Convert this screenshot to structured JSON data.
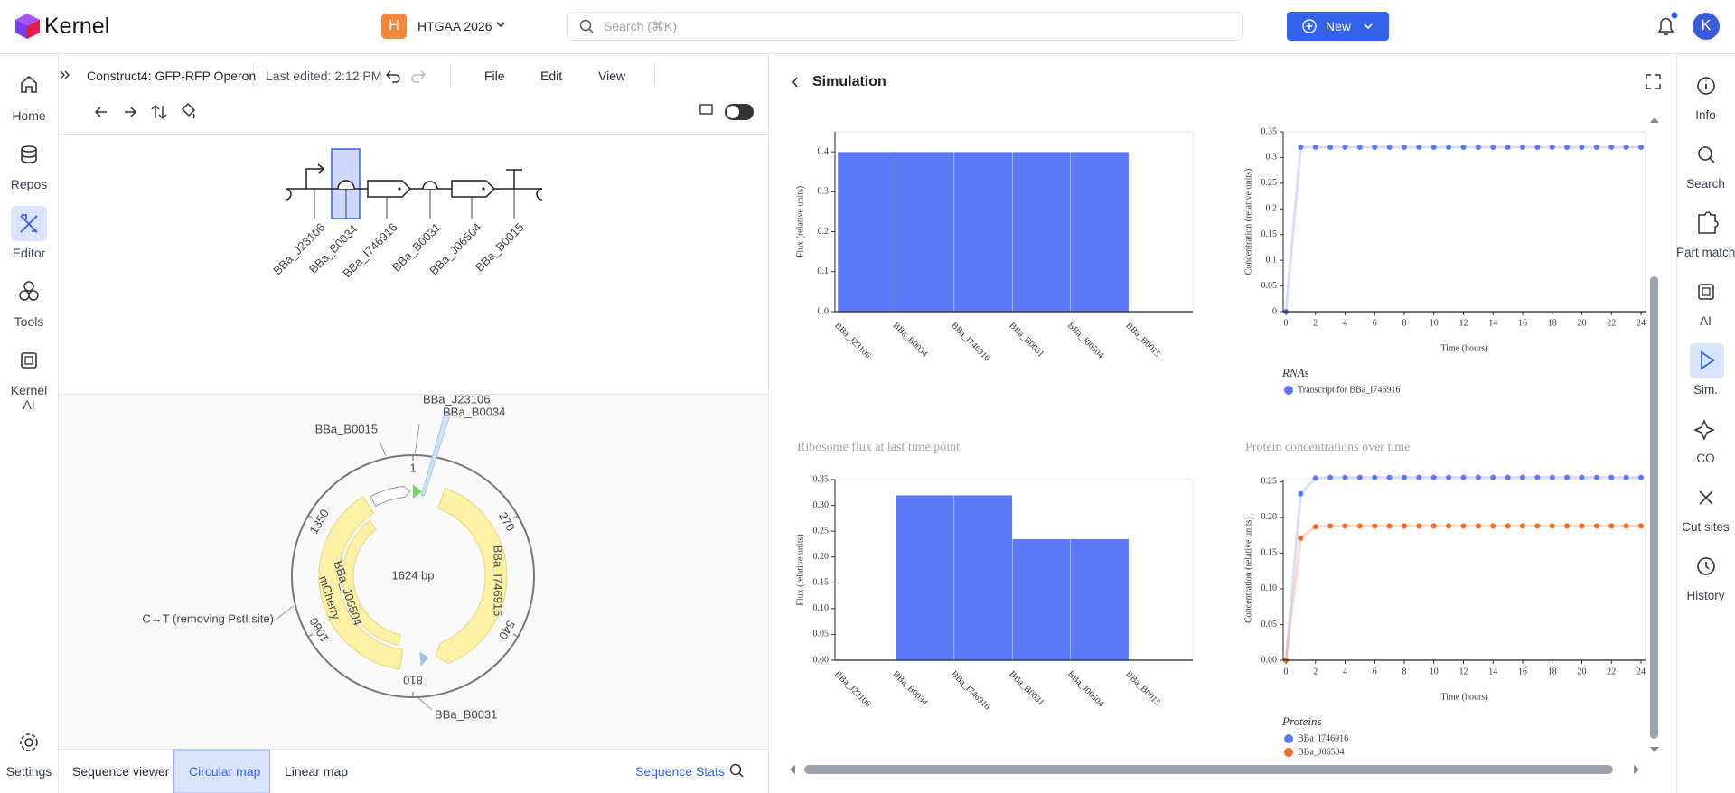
{
  "header": {
    "app": "Kernel",
    "workspace_badge": "H",
    "workspace": "HTGAA 2026",
    "search_placeholder": "Search (⌘K)",
    "new_button": "New",
    "avatar": "K"
  },
  "left_nav": [
    "Home",
    "Repos",
    "Editor",
    "Tools",
    "Kernel AI",
    "Settings"
  ],
  "editor": {
    "document": "Construct4: GFP-RFP Operon",
    "last_edited": "Last edited: 2:12 PM",
    "menu": [
      "File",
      "Edit",
      "View"
    ],
    "parts": [
      "BBa_J23106",
      "BBa_B0034",
      "BBa_I746916",
      "BBa_B0031",
      "BBa_J06504",
      "BBa_B0015"
    ],
    "circular_map": {
      "length": "1624 bp",
      "ticks": [
        "1",
        "270",
        "540",
        "810",
        "1080",
        "1350"
      ],
      "features": [
        "BBa_I746916",
        "BBa_J06504",
        "mCherry"
      ],
      "annotations": [
        "BBa_J23106",
        "BBa_B0034",
        "BBa_B0015",
        "C→T (removing PstI site)",
        "BBa_B0031"
      ]
    },
    "tabs": [
      "Sequence viewer",
      "Circular map",
      "Linear map"
    ],
    "sequence_stats": "Sequence Stats"
  },
  "simulation_panel": {
    "title": "Simulation"
  },
  "right_nav": [
    "Info",
    "Search",
    "Part match",
    "AI",
    "Sim.",
    "CO",
    "Cut sites",
    "History"
  ],
  "chart_data": [
    {
      "type": "bar",
      "ylabel": "Flux (relative units)",
      "categories": [
        "BBa_J23106",
        "BBa_B0034",
        "BBa_I746916",
        "BBa_B0031",
        "BBa_J06504",
        "BBa_B0015"
      ],
      "values": [
        0.4,
        0.4,
        0.4,
        0.4,
        0.4,
        0
      ],
      "color": "#5b7bf6",
      "ylim": [
        0,
        0.45
      ],
      "yticks": [
        {
          "value": 0,
          "label": "0.0"
        },
        0.1,
        0.2,
        0.3,
        0.4
      ],
      "grid": false
    },
    {
      "type": "line",
      "xlabel": "Time (hours)",
      "ylabel": "Concentration (relative units)",
      "x": [
        0,
        1,
        2,
        3,
        4,
        5,
        6,
        7,
        8,
        9,
        10,
        11,
        12,
        13,
        14,
        15,
        16,
        17,
        18,
        19,
        20,
        21,
        22,
        23,
        24
      ],
      "series": [
        {
          "name": "Transcript for BBa_I746916",
          "color": "#5b7bf6",
          "values": [
            0,
            0.32,
            0.32,
            0.32,
            0.32,
            0.32,
            0.32,
            0.32,
            0.32,
            0.32,
            0.32,
            0.32,
            0.32,
            0.32,
            0.32,
            0.32,
            0.32,
            0.32,
            0.32,
            0.32,
            0.32,
            0.32,
            0.32,
            0.32,
            0.32
          ]
        }
      ],
      "legend_title": "RNAs",
      "xlim": [
        0,
        24
      ],
      "xticks": [
        0,
        2,
        4,
        6,
        8,
        10,
        12,
        14,
        16,
        18,
        20,
        22,
        24
      ],
      "ylim": [
        0,
        0.35
      ],
      "yticks": [
        0,
        0.05,
        0.1,
        0.15,
        0.2,
        0.25,
        0.3,
        0.35
      ],
      "grid": false
    },
    {
      "type": "bar",
      "title": "Ribosome flux at last time point",
      "ylabel": "Flux (relative units)",
      "categories": [
        "BBa_J23106",
        "BBa_B0034",
        "BBa_I746916",
        "BBa_B0031",
        "BBa_J06504",
        "BBa_B0015"
      ],
      "values": [
        0,
        0.32,
        0.32,
        0.235,
        0.235,
        0
      ],
      "color": "#5b7bf6",
      "ylim": [
        0,
        0.35
      ],
      "yticks": [
        {
          "value": 0,
          "label": "0.00"
        },
        {
          "value": 0.05,
          "label": "0.05"
        },
        {
          "value": 0.1,
          "label": "0.10"
        },
        {
          "value": 0.15,
          "label": "0.15"
        },
        {
          "value": 0.2,
          "label": "0.20"
        },
        {
          "value": 0.25,
          "label": "0.25"
        },
        {
          "value": 0.3,
          "label": "0.30"
        },
        {
          "value": 0.35,
          "label": "0.35"
        }
      ],
      "grid": false
    },
    {
      "type": "line",
      "title": "Protein concentrations over time",
      "xlabel": "Time (hours)",
      "ylabel": "Concentration (relative units)",
      "x": [
        0,
        1,
        2,
        3,
        4,
        5,
        6,
        7,
        8,
        9,
        10,
        11,
        12,
        13,
        14,
        15,
        16,
        17,
        18,
        19,
        20,
        21,
        22,
        23,
        24
      ],
      "series": [
        {
          "name": "BBa_I746916",
          "color": "#5b7bf6",
          "values": [
            0,
            0.233,
            0.255,
            0.256,
            0.256,
            0.256,
            0.256,
            0.256,
            0.256,
            0.256,
            0.256,
            0.256,
            0.256,
            0.256,
            0.256,
            0.256,
            0.256,
            0.256,
            0.256,
            0.256,
            0.256,
            0.256,
            0.256,
            0.256,
            0.256
          ]
        },
        {
          "name": "BBa_J06504",
          "color": "#f26b2a",
          "values": [
            0,
            0.171,
            0.187,
            0.188,
            0.188,
            0.188,
            0.188,
            0.188,
            0.188,
            0.188,
            0.188,
            0.188,
            0.188,
            0.188,
            0.188,
            0.188,
            0.188,
            0.188,
            0.188,
            0.188,
            0.188,
            0.188,
            0.188,
            0.188,
            0.188
          ]
        }
      ],
      "legend_title": "Proteins",
      "xlim": [
        0,
        24
      ],
      "xticks": [
        0,
        2,
        4,
        6,
        8,
        10,
        12,
        14,
        16,
        18,
        20,
        22,
        24
      ],
      "ylim": [
        0,
        0.253
      ],
      "yticks": [
        {
          "value": 0,
          "label": "0.00"
        },
        {
          "value": 0.05,
          "label": "0.05"
        },
        {
          "value": 0.1,
          "label": "0.10"
        },
        {
          "value": 0.15,
          "label": "0.15"
        },
        {
          "value": 0.2,
          "label": "0.20"
        },
        {
          "value": 0.25,
          "label": "0.25"
        }
      ],
      "grid": false
    }
  ]
}
